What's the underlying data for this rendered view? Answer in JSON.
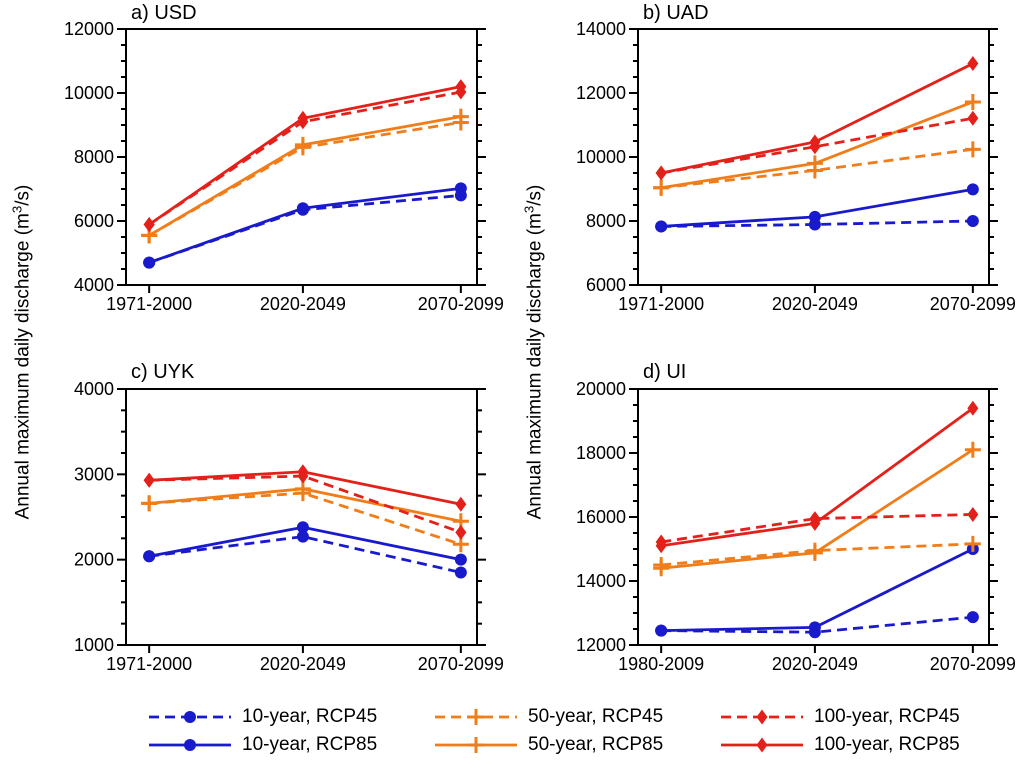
{
  "figure": {
    "ylabel_parts": {
      "pre": "Annual maximum daily discharge (m",
      "sup": "3",
      "post": "/s)"
    }
  },
  "chart_data": {
    "type": "line",
    "ylabel": "Annual maximum daily discharge (m3/s)",
    "colors": {
      "blue": "#1a1acd",
      "orange": "#f07d1a",
      "red": "#e3211a"
    },
    "legend": [
      {
        "label": "10-year, RCP45",
        "color": "blue",
        "dashed": true,
        "marker": "circle"
      },
      {
        "label": "50-year, RCP45",
        "color": "orange",
        "dashed": true,
        "marker": "plus"
      },
      {
        "label": "100-year, RCP45",
        "color": "red",
        "dashed": true,
        "marker": "diamond"
      },
      {
        "label": "10-year, RCP85",
        "color": "blue",
        "dashed": false,
        "marker": "circle"
      },
      {
        "label": "50-year, RCP85",
        "color": "orange",
        "dashed": false,
        "marker": "plus"
      },
      {
        "label": "100-year, RCP85",
        "color": "red",
        "dashed": false,
        "marker": "diamond"
      }
    ],
    "panels": [
      {
        "title": "a) USD",
        "categories": [
          "1971-2000",
          "2020-2049",
          "2070-2099"
        ],
        "ylim": [
          4000,
          12000
        ],
        "yticks": [
          4000,
          6000,
          8000,
          10000,
          12000
        ],
        "minor_step": 500,
        "series": [
          {
            "name": "10-year, RCP45",
            "color": "blue",
            "dashed": true,
            "marker": "circle",
            "values": [
              4700,
              6350,
              6800
            ]
          },
          {
            "name": "10-year, RCP85",
            "color": "blue",
            "dashed": false,
            "marker": "circle",
            "values": [
              4700,
              6400,
              7020
            ]
          },
          {
            "name": "50-year, RCP45",
            "color": "orange",
            "dashed": true,
            "marker": "plus",
            "values": [
              5550,
              8300,
              9080
            ]
          },
          {
            "name": "50-year, RCP85",
            "color": "orange",
            "dashed": false,
            "marker": "plus",
            "values": [
              5550,
              8380,
              9260
            ]
          },
          {
            "name": "100-year, RCP45",
            "color": "red",
            "dashed": true,
            "marker": "diamond",
            "values": [
              5890,
              9100,
              10030
            ]
          },
          {
            "name": "100-year, RCP85",
            "color": "red",
            "dashed": false,
            "marker": "diamond",
            "values": [
              5890,
              9210,
              10200
            ]
          }
        ]
      },
      {
        "title": "b) UAD",
        "categories": [
          "1971-2000",
          "2020-2049",
          "2070-2099"
        ],
        "ylim": [
          6000,
          14000
        ],
        "yticks": [
          6000,
          8000,
          10000,
          12000,
          14000
        ],
        "minor_step": 500,
        "series": [
          {
            "name": "10-year, RCP45",
            "color": "blue",
            "dashed": true,
            "marker": "circle",
            "values": [
              7830,
              7890,
              8000
            ]
          },
          {
            "name": "10-year, RCP85",
            "color": "blue",
            "dashed": false,
            "marker": "circle",
            "values": [
              7830,
              8130,
              8990
            ]
          },
          {
            "name": "50-year, RCP45",
            "color": "orange",
            "dashed": true,
            "marker": "plus",
            "values": [
              9040,
              9580,
              10240
            ]
          },
          {
            "name": "50-year, RCP85",
            "color": "orange",
            "dashed": false,
            "marker": "plus",
            "values": [
              9040,
              9800,
              11720
            ]
          },
          {
            "name": "100-year, RCP45",
            "color": "red",
            "dashed": true,
            "marker": "diamond",
            "values": [
              9500,
              10320,
              11210
            ]
          },
          {
            "name": "100-year, RCP85",
            "color": "red",
            "dashed": false,
            "marker": "diamond",
            "values": [
              9500,
              10470,
              12920
            ]
          }
        ]
      },
      {
        "title": "c) UYK",
        "categories": [
          "1971-2000",
          "2020-2049",
          "2070-2099"
        ],
        "ylim": [
          1000,
          4000
        ],
        "yticks": [
          1000,
          2000,
          3000,
          4000
        ],
        "minor_step": 250,
        "series": [
          {
            "name": "10-year, RCP45",
            "color": "blue",
            "dashed": true,
            "marker": "circle",
            "values": [
              2040,
              2270,
              1850
            ]
          },
          {
            "name": "10-year, RCP85",
            "color": "blue",
            "dashed": false,
            "marker": "circle",
            "values": [
              2040,
              2380,
              2000
            ]
          },
          {
            "name": "50-year, RCP45",
            "color": "orange",
            "dashed": true,
            "marker": "plus",
            "values": [
              2660,
              2780,
              2180
            ]
          },
          {
            "name": "50-year, RCP85",
            "color": "orange",
            "dashed": false,
            "marker": "plus",
            "values": [
              2660,
              2830,
              2450
            ]
          },
          {
            "name": "100-year, RCP45",
            "color": "red",
            "dashed": true,
            "marker": "diamond",
            "values": [
              2930,
              2980,
              2320
            ]
          },
          {
            "name": "100-year, RCP85",
            "color": "red",
            "dashed": false,
            "marker": "diamond",
            "values": [
              2930,
              3030,
              2650
            ]
          }
        ]
      },
      {
        "title": "d) UI",
        "categories": [
          "1980-2009",
          "2020-2049",
          "2070-2099"
        ],
        "ylim": [
          12000,
          20000
        ],
        "yticks": [
          12000,
          14000,
          16000,
          18000,
          20000
        ],
        "minor_step": 500,
        "series": [
          {
            "name": "10-year, RCP45",
            "color": "blue",
            "dashed": true,
            "marker": "circle",
            "values": [
              12450,
              12400,
              12870
            ]
          },
          {
            "name": "10-year, RCP85",
            "color": "blue",
            "dashed": false,
            "marker": "circle",
            "values": [
              12450,
              12550,
              15000
            ]
          },
          {
            "name": "50-year, RCP45",
            "color": "orange",
            "dashed": true,
            "marker": "plus",
            "values": [
              14500,
              14950,
              15160
            ]
          },
          {
            "name": "50-year, RCP85",
            "color": "orange",
            "dashed": false,
            "marker": "plus",
            "values": [
              14400,
              14880,
              18100
            ]
          },
          {
            "name": "100-year, RCP45",
            "color": "red",
            "dashed": true,
            "marker": "diamond",
            "values": [
              15220,
              15950,
              16080
            ]
          },
          {
            "name": "100-year, RCP85",
            "color": "red",
            "dashed": false,
            "marker": "diamond",
            "values": [
              15100,
              15800,
              19400
            ]
          }
        ]
      }
    ]
  }
}
